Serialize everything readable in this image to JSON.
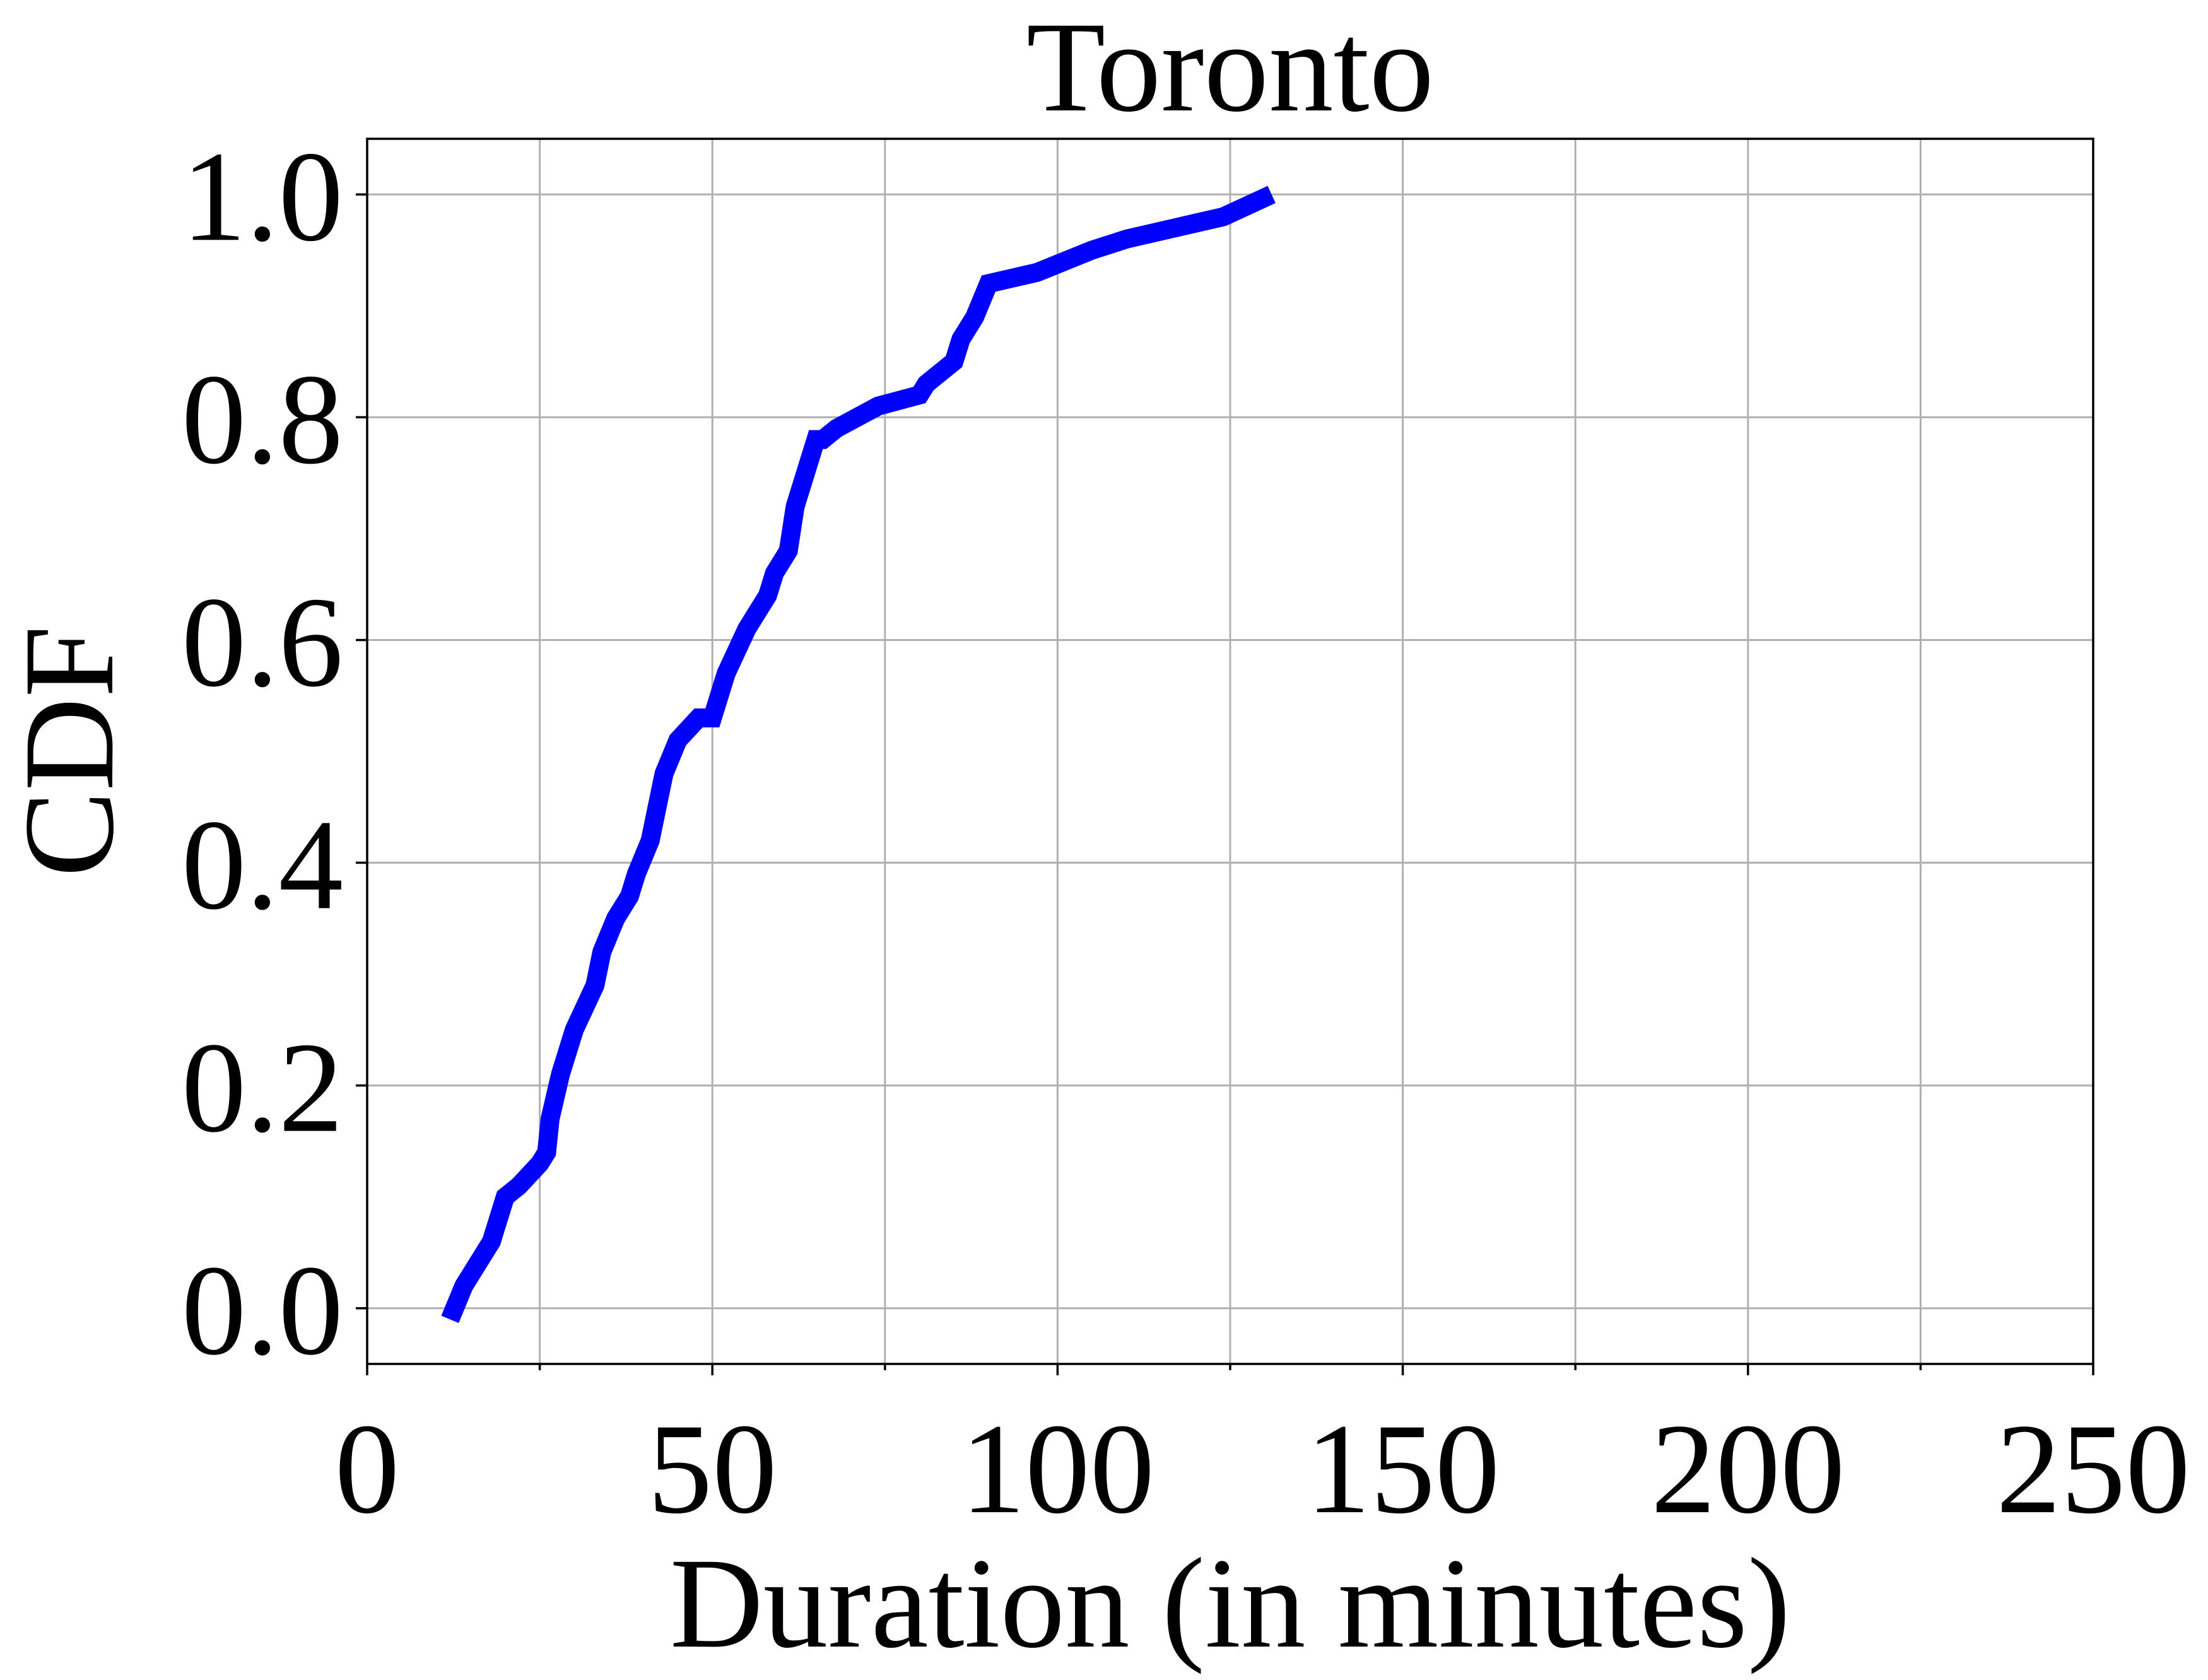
{
  "chart_data": {
    "type": "line",
    "title": "Toronto",
    "xlabel": "Duration (in minutes)",
    "ylabel": "CDF",
    "xlim": [
      0,
      250
    ],
    "ylim": [
      -0.05,
      1.05
    ],
    "xticks": [
      0,
      50,
      100,
      150,
      200,
      250
    ],
    "xtick_labels": [
      "0",
      "50",
      "100",
      "150",
      "200",
      "250"
    ],
    "x_minor_ticks": [
      25,
      75,
      125,
      175,
      225
    ],
    "yticks": [
      0.0,
      0.2,
      0.4,
      0.6,
      0.8,
      1.0
    ],
    "ytick_labels": [
      "0.0",
      "0.2",
      "0.4",
      "0.6",
      "0.8",
      "1.0"
    ],
    "grid": true,
    "legend": "none",
    "series": [
      {
        "color": "#0000ff",
        "x": [
          12,
          14,
          16,
          18,
          19,
          20,
          22,
          25,
          26,
          26.5,
          28,
          30,
          33,
          34,
          36,
          38,
          39,
          41,
          42,
          43,
          45,
          48,
          50,
          52,
          55,
          58,
          59,
          61,
          62,
          63,
          64,
          65,
          66,
          68,
          71,
          74,
          80,
          81,
          83,
          85,
          86,
          88,
          90,
          97,
          105,
          110,
          117,
          124,
          131
        ],
        "y": [
          -0.01,
          0.02,
          0.04,
          0.06,
          0.08,
          0.1,
          0.11,
          0.13,
          0.14,
          0.17,
          0.21,
          0.25,
          0.29,
          0.32,
          0.35,
          0.37,
          0.39,
          0.42,
          0.45,
          0.48,
          0.51,
          0.53,
          0.53,
          0.57,
          0.61,
          0.64,
          0.66,
          0.68,
          0.72,
          0.74,
          0.76,
          0.78,
          0.78,
          0.79,
          0.8,
          0.81,
          0.82,
          0.83,
          0.84,
          0.85,
          0.87,
          0.89,
          0.92,
          0.93,
          0.95,
          0.96,
          0.97,
          0.98,
          1.0
        ]
      }
    ]
  }
}
